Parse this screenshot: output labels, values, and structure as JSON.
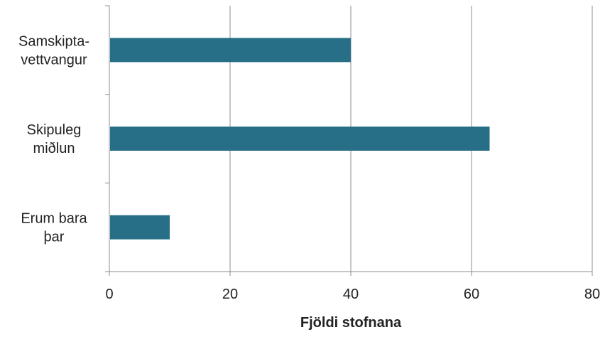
{
  "chart_data": {
    "type": "bar",
    "orientation": "horizontal",
    "categories": [
      [
        "Samskipta-",
        "vettvangur"
      ],
      [
        "Skipuleg",
        "miðlun"
      ],
      [
        "Erum bara",
        "þar"
      ]
    ],
    "values": [
      40,
      63,
      10
    ],
    "xlabel": "Fjöldi stofnana",
    "ylabel": "",
    "xlim": [
      0,
      80
    ],
    "xticks": [
      0,
      20,
      40,
      60,
      80
    ],
    "grid": "vertical",
    "bar_color": "#276F87",
    "grid_color": "#8C8C8C"
  }
}
